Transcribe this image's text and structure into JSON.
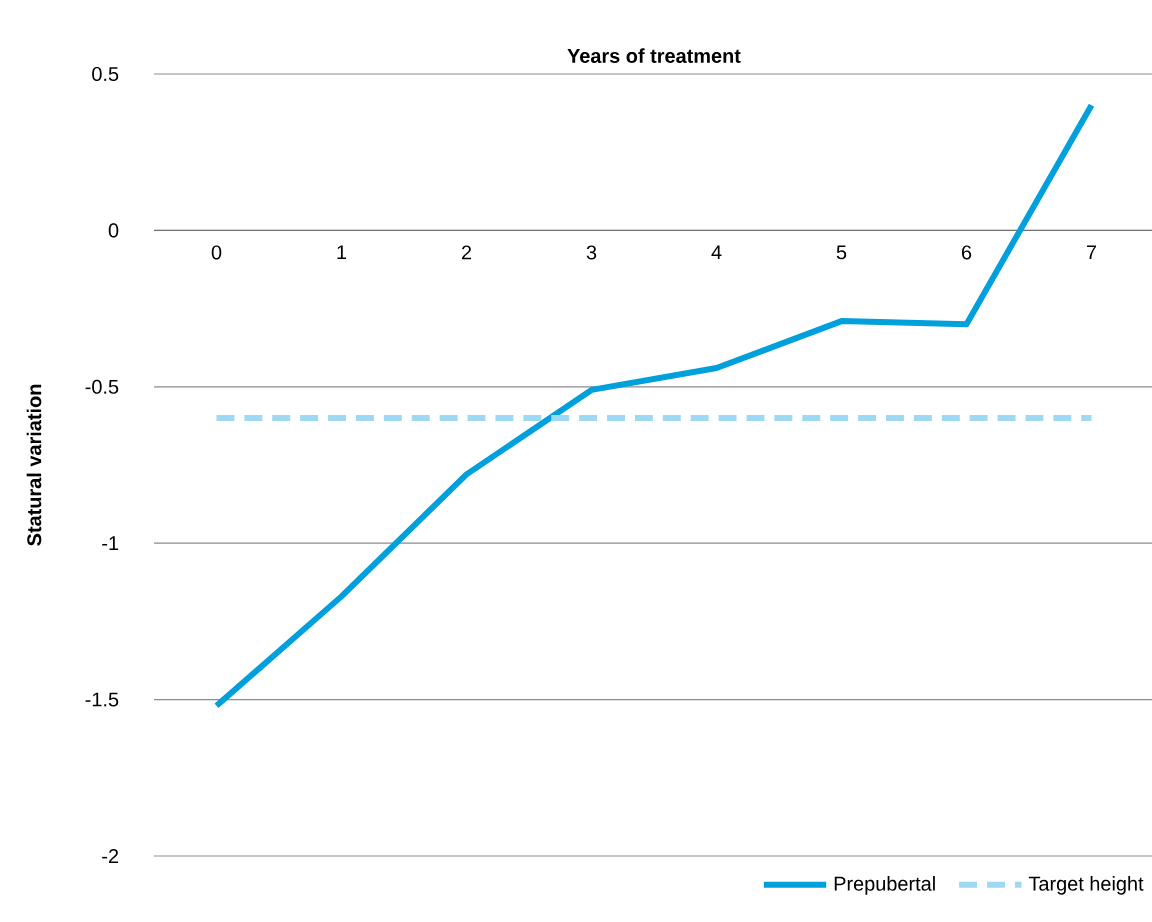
{
  "chart_data": {
    "type": "line",
    "xlabel": "Years of treatment",
    "ylabel": "Statural variation",
    "categories": [
      "0",
      "1",
      "2",
      "3",
      "4",
      "5",
      "6",
      "7"
    ],
    "series": [
      {
        "name": "Prepubertal",
        "color": "#00a0dc",
        "line_style": "solid",
        "values": [
          -1.52,
          -1.17,
          -0.78,
          -0.51,
          -0.44,
          -0.29,
          -0.3,
          0.4
        ]
      },
      {
        "name": "Target height",
        "color": "#9dd9f3",
        "line_style": "dashed",
        "values": [
          -0.6,
          -0.6,
          -0.6,
          -0.6,
          -0.6,
          -0.6,
          -0.6,
          -0.6
        ]
      }
    ],
    "ylim": [
      -2,
      0.5
    ],
    "yticks": [
      -2,
      -1.5,
      -1,
      -0.5,
      0,
      0.5
    ],
    "grid": "y",
    "legend": "bottom right",
    "marker": "none"
  }
}
